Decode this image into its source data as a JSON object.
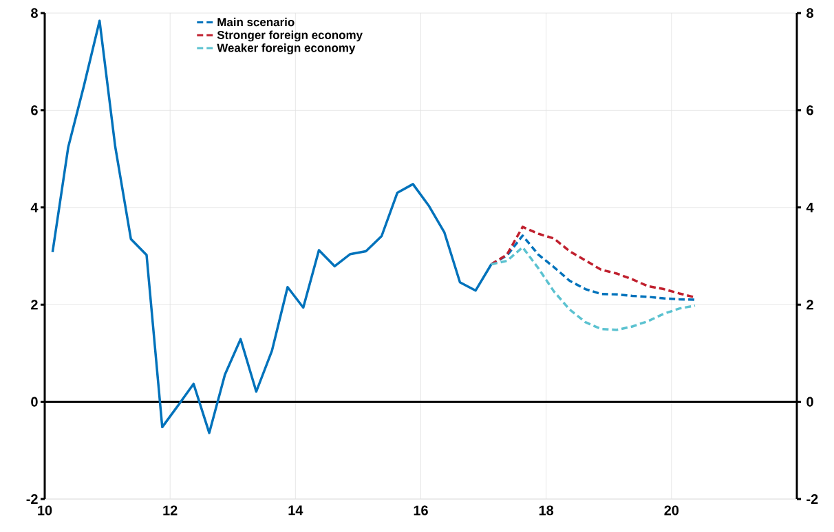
{
  "chart_data": {
    "type": "line",
    "xlim": [
      10,
      22
    ],
    "xticks": [
      10,
      12,
      14,
      16,
      18,
      20
    ],
    "ylim": [
      -2,
      8
    ],
    "yticks": [
      -2,
      0,
      2,
      4,
      6,
      8
    ],
    "y2lim": [
      -2,
      8
    ],
    "y2ticks": [
      -2,
      0,
      2,
      4,
      6,
      8
    ],
    "grid": true,
    "legend": "top",
    "series": [
      {
        "color": "#0072bb",
        "line_style": "solid",
        "x": [
          10.125,
          10.375,
          10.625,
          10.875,
          11.125,
          11.375,
          11.625,
          11.875,
          12.125,
          12.375,
          12.625,
          12.875,
          13.125,
          13.375,
          13.625,
          13.875,
          14.125,
          14.375,
          14.625,
          14.875,
          15.125,
          15.375,
          15.625,
          15.875,
          16.125,
          16.375,
          16.625,
          16.875,
          17.125
        ],
        "values": [
          3.08,
          5.24,
          6.5,
          7.84,
          5.25,
          3.35,
          3.02,
          -0.52,
          -0.08,
          0.37,
          -0.64,
          0.56,
          1.29,
          0.21,
          1.05,
          2.36,
          1.94,
          3.12,
          2.79,
          3.04,
          3.1,
          3.41,
          4.3,
          4.48,
          4.04,
          3.49,
          2.46,
          2.29,
          2.83
        ]
      },
      {
        "name": "Main scenario",
        "color": "#0072bb",
        "line_style": "dashed",
        "x": [
          17.125,
          17.375,
          17.625,
          17.875,
          18.125,
          18.375,
          18.625,
          18.875,
          19.125,
          19.375,
          19.625,
          19.875,
          20.125,
          20.375
        ],
        "values": [
          2.83,
          3.01,
          3.42,
          3.03,
          2.77,
          2.49,
          2.32,
          2.22,
          2.21,
          2.18,
          2.16,
          2.13,
          2.11,
          2.1
        ]
      },
      {
        "name": "Stronger foreign economy",
        "color": "#c0202e",
        "line_style": "dashed",
        "x": [
          17.125,
          17.375,
          17.625,
          17.875,
          18.125,
          18.375,
          18.625,
          18.875,
          19.125,
          19.375,
          19.625,
          19.875,
          20.125,
          20.375
        ],
        "values": [
          2.83,
          3.03,
          3.6,
          3.46,
          3.36,
          3.1,
          2.91,
          2.72,
          2.64,
          2.52,
          2.38,
          2.32,
          2.23,
          2.15
        ]
      },
      {
        "name": "Weaker foreign economy",
        "color": "#5bc2d0",
        "line_style": "dashed",
        "x": [
          17.125,
          17.375,
          17.625,
          17.875,
          18.125,
          18.375,
          18.625,
          18.875,
          19.125,
          19.375,
          19.625,
          19.875,
          20.125,
          20.375
        ],
        "values": [
          2.83,
          2.9,
          3.18,
          2.75,
          2.27,
          1.9,
          1.64,
          1.5,
          1.48,
          1.55,
          1.66,
          1.81,
          1.92,
          1.98
        ]
      }
    ]
  }
}
